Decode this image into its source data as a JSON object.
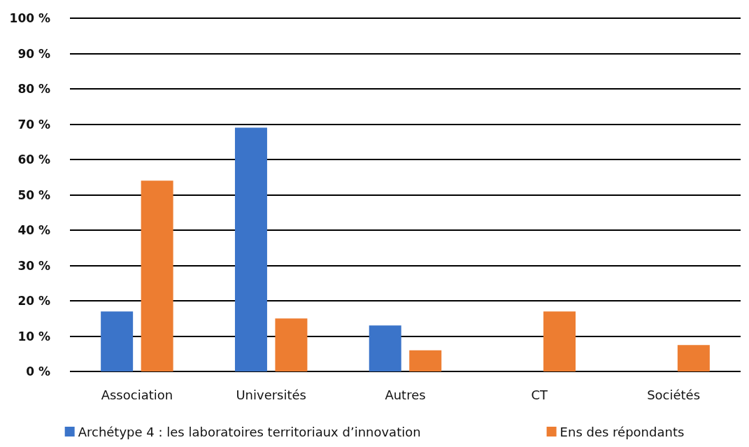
{
  "chart_data": {
    "type": "bar",
    "categories": [
      "Association",
      "Universités",
      "Autres",
      "CT",
      "Sociétés"
    ],
    "series": [
      {
        "name": "Archétype 4 : les laboratoires territoriaux d’innovation",
        "color": "#3b74c9",
        "values": [
          17,
          69,
          13,
          null,
          null
        ]
      },
      {
        "name": "Ens des répondants",
        "color": "#ed7d31",
        "values": [
          54,
          15,
          6,
          17,
          7.5
        ]
      }
    ],
    "ylim": [
      0,
      100
    ],
    "yticks": [
      {
        "value": 0,
        "label": "0 %"
      },
      {
        "value": 10,
        "label": "10 %"
      },
      {
        "value": 20,
        "label": "20 %"
      },
      {
        "value": 30,
        "label": "30 %"
      },
      {
        "value": 40,
        "label": "40 %"
      },
      {
        "value": 50,
        "label": "50 %"
      },
      {
        "value": 60,
        "label": "60 %"
      },
      {
        "value": 70,
        "label": "70 %"
      },
      {
        "value": 80,
        "label": "80 %"
      },
      {
        "value": 90,
        "label": "90 %"
      },
      {
        "value": 100,
        "label": "100 %"
      }
    ],
    "grid": "y",
    "legend": "bottom"
  }
}
